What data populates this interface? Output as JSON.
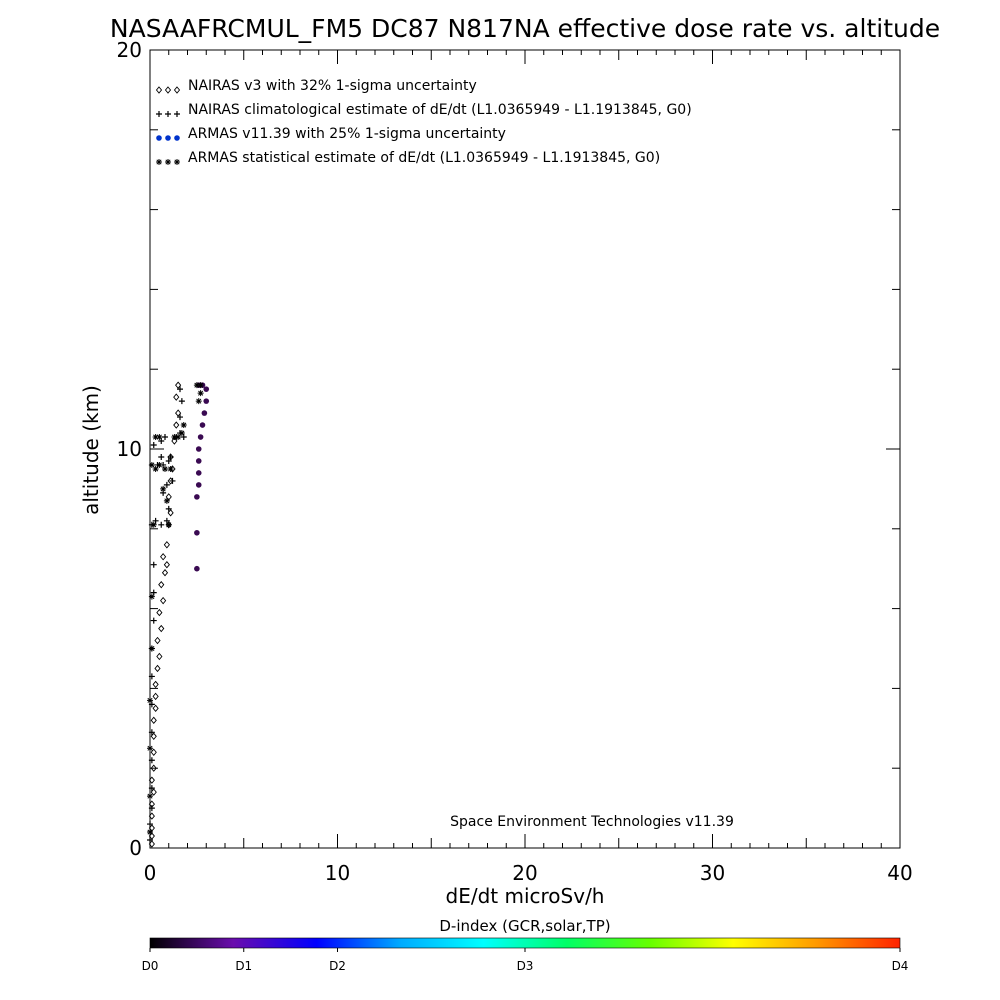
{
  "chart_data": {
    "type": "scatter",
    "title": "NASAAFRCMUL_FM5 DC87 N817NA effective dose rate vs. altitude",
    "xlabel": "dE/dt microSv/h",
    "ylabel": "altitude (km)",
    "xlim": [
      0,
      40
    ],
    "ylim": [
      0,
      20
    ],
    "xticks": [
      0,
      10,
      20,
      30,
      40
    ],
    "yticks": [
      0,
      10,
      20
    ],
    "legend_position": "top-left",
    "legend": [
      {
        "symbol": "◇◇◇",
        "label": "NAIRAS v3 with 32% 1-sigma uncertainty",
        "color": "#000000"
      },
      {
        "symbol": "+++",
        "label": "NAIRAS climatological estimate of dE/dt (L1.0365949 - L1.1913845, G0)",
        "color": "#000000"
      },
      {
        "symbol": "●●●",
        "label": "ARMAS v11.39 with 25% 1-sigma uncertainty",
        "color": "#0033cc"
      },
      {
        "symbol": "***",
        "label": "ARMAS statistical estimate of dE/dt (L1.0365949 - L1.1913845, G0)",
        "color": "#000000"
      }
    ],
    "annotation": "Space Environment Technologies v11.39",
    "series": [
      {
        "name": "NAIRAS v3 with 32% 1-sigma uncertainty",
        "marker": "diamond",
        "points": [
          [
            0.1,
            0.1
          ],
          [
            0.1,
            0.3
          ],
          [
            0.1,
            0.5
          ],
          [
            0.1,
            0.8
          ],
          [
            0.1,
            1.1
          ],
          [
            0.2,
            1.4
          ],
          [
            0.1,
            1.7
          ],
          [
            0.2,
            2.0
          ],
          [
            0.2,
            2.4
          ],
          [
            0.2,
            2.8
          ],
          [
            0.2,
            3.2
          ],
          [
            0.3,
            3.5
          ],
          [
            0.3,
            3.8
          ],
          [
            0.3,
            4.1
          ],
          [
            0.4,
            4.5
          ],
          [
            0.5,
            4.8
          ],
          [
            0.4,
            5.2
          ],
          [
            0.6,
            5.5
          ],
          [
            0.5,
            5.9
          ],
          [
            0.7,
            6.2
          ],
          [
            0.6,
            6.6
          ],
          [
            0.8,
            6.9
          ],
          [
            0.9,
            7.1
          ],
          [
            0.7,
            7.3
          ],
          [
            0.9,
            7.6
          ],
          [
            1.0,
            8.1
          ],
          [
            1.1,
            8.4
          ],
          [
            1.0,
            8.8
          ],
          [
            1.1,
            9.2
          ],
          [
            1.2,
            9.5
          ],
          [
            1.1,
            9.8
          ],
          [
            1.3,
            10.2
          ],
          [
            1.4,
            10.6
          ],
          [
            1.5,
            10.9
          ],
          [
            1.4,
            11.3
          ],
          [
            1.5,
            11.6
          ]
        ]
      },
      {
        "name": "NAIRAS climatological estimate of dE/dt (L1.0365949 - L1.1913845, G0)",
        "marker": "plus",
        "points": [
          [
            0.0,
            0.2
          ],
          [
            0.0,
            0.6
          ],
          [
            0.1,
            1.0
          ],
          [
            0.1,
            1.5
          ],
          [
            0.1,
            2.2
          ],
          [
            0.1,
            2.9
          ],
          [
            0.1,
            3.6
          ],
          [
            0.1,
            4.3
          ],
          [
            0.1,
            5.0
          ],
          [
            0.2,
            5.7
          ],
          [
            0.2,
            6.4
          ],
          [
            0.2,
            7.1
          ],
          [
            0.1,
            8.1
          ],
          [
            0.3,
            8.2
          ],
          [
            0.6,
            8.1
          ],
          [
            0.9,
            8.2
          ],
          [
            1.0,
            8.5
          ],
          [
            0.7,
            8.9
          ],
          [
            0.9,
            9.1
          ],
          [
            1.2,
            9.2
          ],
          [
            0.4,
            9.6
          ],
          [
            0.7,
            9.6
          ],
          [
            1.0,
            9.7
          ],
          [
            0.6,
            9.8
          ],
          [
            1.1,
            9.8
          ],
          [
            0.2,
            10.1
          ],
          [
            0.6,
            10.2
          ],
          [
            0.8,
            10.3
          ],
          [
            1.4,
            10.3
          ],
          [
            1.6,
            10.4
          ],
          [
            1.8,
            10.3
          ],
          [
            1.6,
            10.8
          ],
          [
            1.7,
            11.2
          ],
          [
            1.6,
            11.5
          ]
        ]
      },
      {
        "name": "ARMAS v11.39 with 25% 1-sigma uncertainty",
        "marker": "dot",
        "color_scale": "D-index",
        "points": [
          [
            2.5,
            7.0
          ],
          [
            2.5,
            7.9
          ],
          [
            2.5,
            8.8
          ],
          [
            2.6,
            9.1
          ],
          [
            2.6,
            9.4
          ],
          [
            2.6,
            9.7
          ],
          [
            2.6,
            10.0
          ],
          [
            2.7,
            10.3
          ],
          [
            2.8,
            10.6
          ],
          [
            2.9,
            10.9
          ],
          [
            3.0,
            11.2
          ],
          [
            3.0,
            11.5
          ],
          [
            2.6,
            11.6
          ],
          [
            2.8,
            11.6
          ]
        ]
      },
      {
        "name": "ARMAS statistical estimate of dE/dt (L1.0365949 - L1.1913845, G0)",
        "marker": "star",
        "points": [
          [
            0.0,
            0.4
          ],
          [
            0.0,
            1.3
          ],
          [
            0.0,
            2.5
          ],
          [
            0.0,
            3.7
          ],
          [
            0.1,
            5.0
          ],
          [
            0.1,
            6.3
          ],
          [
            0.2,
            8.1
          ],
          [
            0.1,
            9.6
          ],
          [
            0.3,
            9.5
          ],
          [
            0.5,
            9.6
          ],
          [
            0.8,
            9.5
          ],
          [
            1.1,
            9.5
          ],
          [
            0.7,
            9.0
          ],
          [
            0.9,
            8.7
          ],
          [
            1.0,
            8.1
          ],
          [
            0.3,
            10.3
          ],
          [
            0.5,
            10.3
          ],
          [
            1.3,
            10.3
          ],
          [
            1.5,
            10.3
          ],
          [
            1.7,
            10.4
          ],
          [
            1.8,
            10.6
          ],
          [
            2.6,
            11.2
          ],
          [
            2.7,
            11.4
          ],
          [
            2.5,
            11.6
          ],
          [
            2.7,
            11.6
          ]
        ]
      }
    ]
  },
  "colorbar": {
    "title": "D-index (GCR,solar,TP)",
    "stops": [
      "#000000",
      "#6a0dad",
      "#0000ff",
      "#00aaff",
      "#00ffff",
      "#00ff66",
      "#66ff00",
      "#ffff00",
      "#ff9900",
      "#ff2200"
    ],
    "labels": [
      {
        "text": "D0",
        "value": 0.0
      },
      {
        "text": "D1",
        "value": 0.125
      },
      {
        "text": "D2",
        "value": 0.25
      },
      {
        "text": "D3",
        "value": 0.5
      },
      {
        "text": "D4",
        "value": 1.0
      }
    ]
  }
}
